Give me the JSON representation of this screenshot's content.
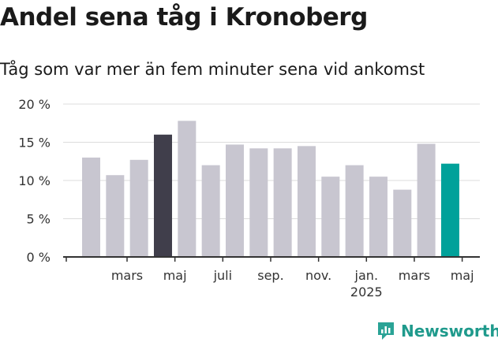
{
  "chart_data": {
    "type": "bar",
    "title": "Andel sena tåg i Kronoberg",
    "subtitle": "Tåg som var mer än fem minuter sena vid ankomst",
    "values": [
      13,
      10.7,
      12.7,
      16,
      17.8,
      12,
      14.7,
      14.2,
      14.2,
      14.5,
      10.5,
      12,
      10.5,
      8.8,
      14.8,
      12.2
    ],
    "highlight": {
      "3": "#403e4b",
      "15": "#00a19a"
    },
    "bar_color": "#c8c6d0",
    "ylim": [
      0,
      20
    ],
    "yticks": [
      0,
      5,
      10,
      15,
      20
    ],
    "ytick_labels": [
      "0 %",
      "5 %",
      "10 %",
      "15 %",
      "20 %"
    ],
    "xtick_labels": [
      {
        "index": 1.5,
        "line1": "mars",
        "line2": ""
      },
      {
        "index": 3.5,
        "line1": "maj",
        "line2": ""
      },
      {
        "index": 5.5,
        "line1": "juli",
        "line2": ""
      },
      {
        "index": 7.5,
        "line1": "sep.",
        "line2": ""
      },
      {
        "index": 9.5,
        "line1": "nov.",
        "line2": ""
      },
      {
        "index": 11.5,
        "line1": "jan.",
        "line2": "2025"
      },
      {
        "index": 13.5,
        "line1": "mars",
        "line2": ""
      },
      {
        "index": 15.5,
        "line1": "maj",
        "line2": ""
      }
    ],
    "grid": true,
    "legend": "none"
  },
  "brand": {
    "name": "Newsworthy",
    "icon": "newsworthy-logo-icon",
    "color": "#1f9a8c"
  }
}
